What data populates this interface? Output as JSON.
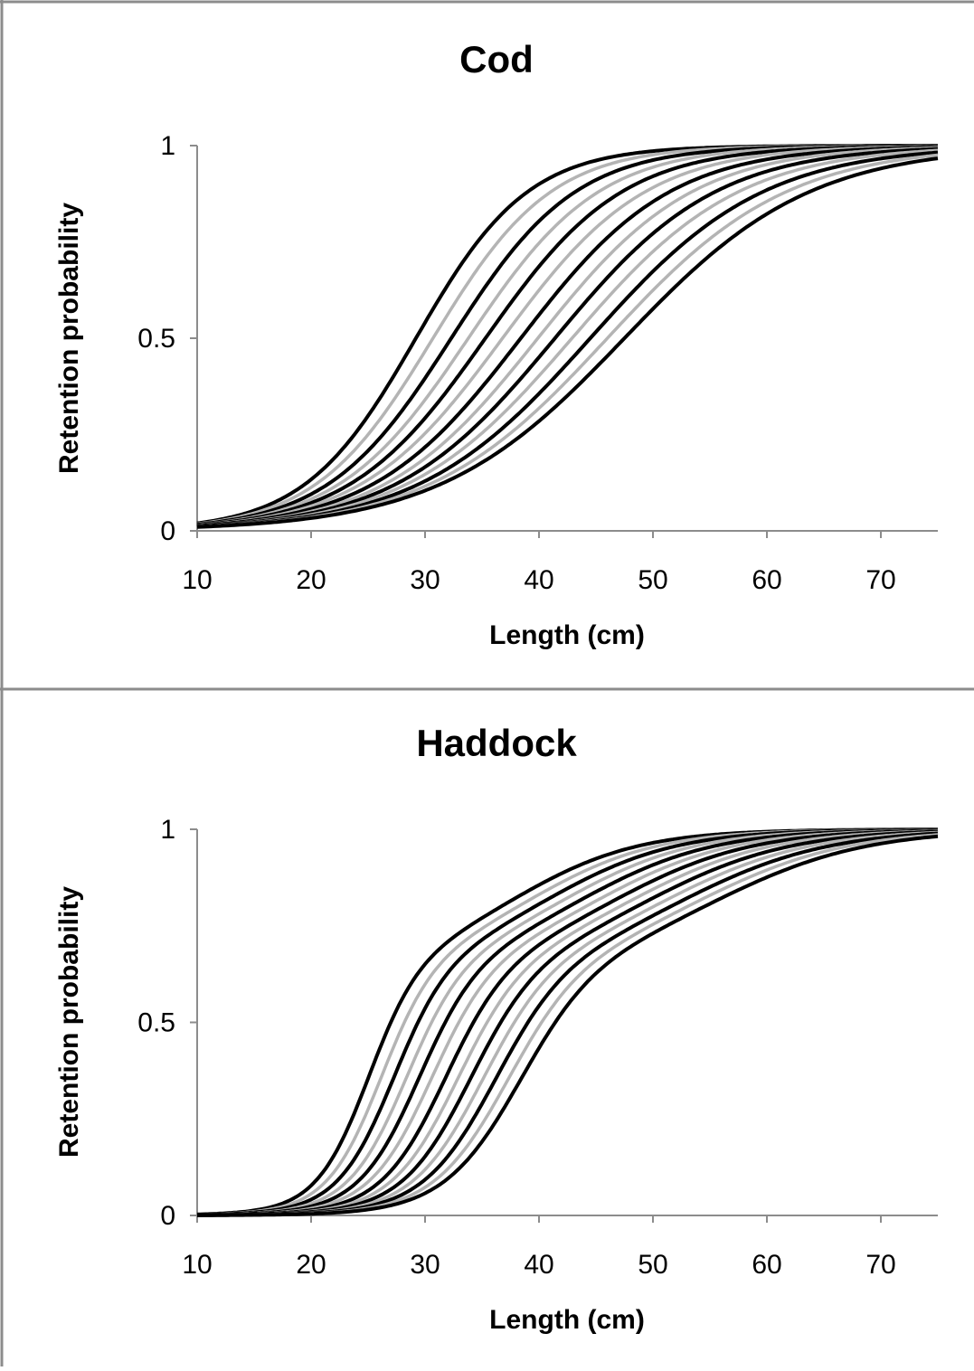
{
  "chart_data": [
    {
      "type": "line",
      "title": "Cod",
      "xlabel": "Length (cm)",
      "ylabel": "Retention probability",
      "xlim": [
        10,
        75
      ],
      "ylim": [
        0,
        1
      ],
      "xticks": [
        "10",
        "20",
        "30",
        "40",
        "50",
        "60",
        "70"
      ],
      "yticks": [
        "0",
        "0.5",
        "1"
      ],
      "grid": false,
      "legend": "none",
      "curve_model": "logistic",
      "series_l50": [
        29.2,
        30.7,
        32.3,
        33.8,
        35.3,
        36.8,
        38.4,
        39.9,
        41.4,
        42.9,
        44.5,
        46.0,
        47.5
      ],
      "series_sr": [
        10.8,
        11.4,
        12.0,
        12.6,
        13.2,
        13.8,
        14.4,
        14.9,
        15.5,
        16.1,
        16.7,
        17.3,
        17.9
      ],
      "series_colors": [
        "#000000",
        "#b4b4b4",
        "#000000",
        "#b4b4b4",
        "#000000",
        "#b4b4b4",
        "#000000",
        "#b4b4b4",
        "#000000",
        "#b4b4b4",
        "#000000",
        "#b4b4b4",
        "#000000"
      ]
    },
    {
      "type": "line",
      "title": "Haddock",
      "xlabel": "Length (cm)",
      "ylabel": "Retention probability",
      "xlim": [
        10,
        75
      ],
      "ylim": [
        0,
        1
      ],
      "xticks": [
        "10",
        "20",
        "30",
        "40",
        "50",
        "60",
        "70"
      ],
      "yticks": [
        "0",
        "0.5",
        "1"
      ],
      "grid": false,
      "legend": "none",
      "curve_model": "double-logistic",
      "mix_weight_first_component": 0.65,
      "series_l50_a": [
        25.0,
        26.1,
        27.2,
        28.3,
        29.4,
        30.5,
        31.7,
        32.8,
        33.9,
        35.0,
        36.1,
        37.2,
        38.3
      ],
      "series_sr_a": [
        5.0,
        5.2,
        5.4,
        5.6,
        5.8,
        6.0,
        6.2,
        6.4,
        6.6,
        6.8,
        7.0,
        7.2,
        7.4
      ],
      "series_l50_b": [
        38.0,
        39.5,
        41.0,
        42.5,
        44.0,
        45.5,
        47.0,
        48.5,
        50.0,
        51.5,
        53.0,
        54.5,
        56.0
      ],
      "series_sr_b": [
        12.0,
        12.2,
        12.4,
        12.6,
        12.8,
        13.0,
        13.2,
        13.4,
        13.6,
        13.8,
        14.0,
        14.2,
        14.4
      ],
      "series_colors": [
        "#000000",
        "#b4b4b4",
        "#000000",
        "#b4b4b4",
        "#000000",
        "#b4b4b4",
        "#000000",
        "#b4b4b4",
        "#000000",
        "#b4b4b4",
        "#000000",
        "#b4b4b4",
        "#000000"
      ]
    }
  ]
}
